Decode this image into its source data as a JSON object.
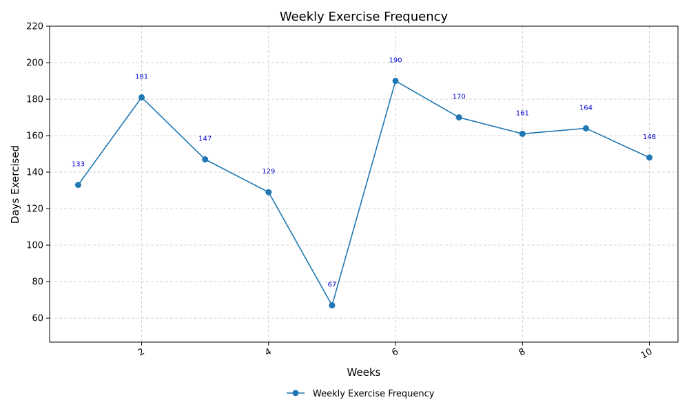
{
  "chart_data": {
    "type": "line",
    "title": "Weekly Exercise Frequency",
    "xlabel": "Weeks",
    "ylabel": "Days Exercised",
    "x": [
      1,
      2,
      3,
      4,
      5,
      6,
      7,
      8,
      9,
      10
    ],
    "xlim": [
      0.55,
      10.45
    ],
    "ylim": [
      46.85,
      220
    ],
    "xticks": [
      2,
      4,
      6,
      8,
      10
    ],
    "yticks": [
      60,
      80,
      100,
      120,
      140,
      160,
      180,
      200,
      220
    ],
    "xtick_rotation": 30,
    "grid": true,
    "series": [
      {
        "name": "Weekly Exercise Frequency",
        "values": [
          133,
          181,
          147,
          129,
          67,
          190,
          170,
          161,
          164,
          148
        ],
        "color": "#1f77b4",
        "marker": "circle"
      }
    ],
    "data_label_color": "#0000cc",
    "legend": {
      "placement": "bottom-center",
      "entries": [
        "Weekly Exercise Frequency"
      ]
    }
  }
}
